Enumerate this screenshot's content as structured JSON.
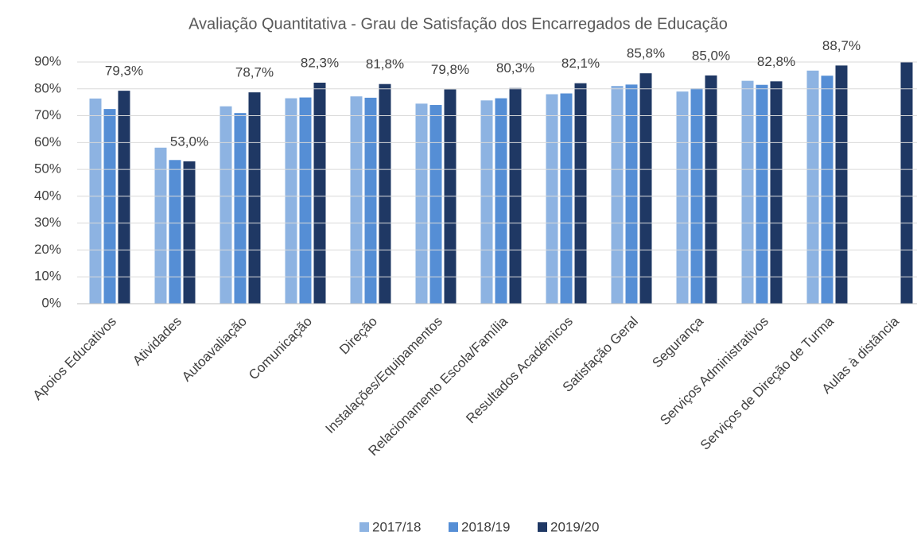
{
  "chart_data": {
    "type": "bar",
    "title": "Avaliação Quantitativa - Grau de Satisfação dos Encarregados de Educação",
    "categories": [
      "Apoios Educativos",
      "Atividades",
      "Autoavaliação",
      "Comunicação",
      "Direção",
      "Instalações/Equipamentos",
      "Relacionamento Escola/Família",
      "Resultados Académicos",
      "Satisfação Geral",
      "Segurança",
      "Serviços Administrativos",
      "Serviços de Direção de Turma",
      "Aulas à distância"
    ],
    "series": [
      {
        "name": "2017/18",
        "color": "#8db3e2",
        "values": [
          76.4,
          58.1,
          73.5,
          76.5,
          77.2,
          74.5,
          75.7,
          78.0,
          81.1,
          79.0,
          83.0,
          86.8,
          null
        ]
      },
      {
        "name": "2018/19",
        "color": "#558ed5",
        "values": [
          72.5,
          53.5,
          71.0,
          76.8,
          76.7,
          74.0,
          76.5,
          78.3,
          81.6,
          80.2,
          81.5,
          84.9,
          null
        ]
      },
      {
        "name": "2019/20",
        "color": "#1f3864",
        "values": [
          79.3,
          53.0,
          78.7,
          82.3,
          81.8,
          79.8,
          80.3,
          82.1,
          85.8,
          85.0,
          82.8,
          88.7,
          90
        ],
        "value_labels": [
          "79,3%",
          "53,0%",
          "78,7%",
          "82,3%",
          "81,8%",
          "79,8%",
          "80,3%",
          "82,1%",
          "85,8%",
          "85,0%",
          "82,8%",
          "88,7%",
          null
        ]
      }
    ],
    "ylim": [
      0,
      90
    ],
    "yticks": [
      {
        "value": 0,
        "label": "0%"
      },
      {
        "value": 10,
        "label": "10%"
      },
      {
        "value": 20,
        "label": "20%"
      },
      {
        "value": 30,
        "label": "30%"
      },
      {
        "value": 40,
        "label": "40%"
      },
      {
        "value": 50,
        "label": "50%"
      },
      {
        "value": 60,
        "label": "60%"
      },
      {
        "value": 70,
        "label": "70%"
      },
      {
        "value": 80,
        "label": "80%"
      },
      {
        "value": 90,
        "label": "90%"
      }
    ],
    "grid": true,
    "legend": "bottom"
  }
}
